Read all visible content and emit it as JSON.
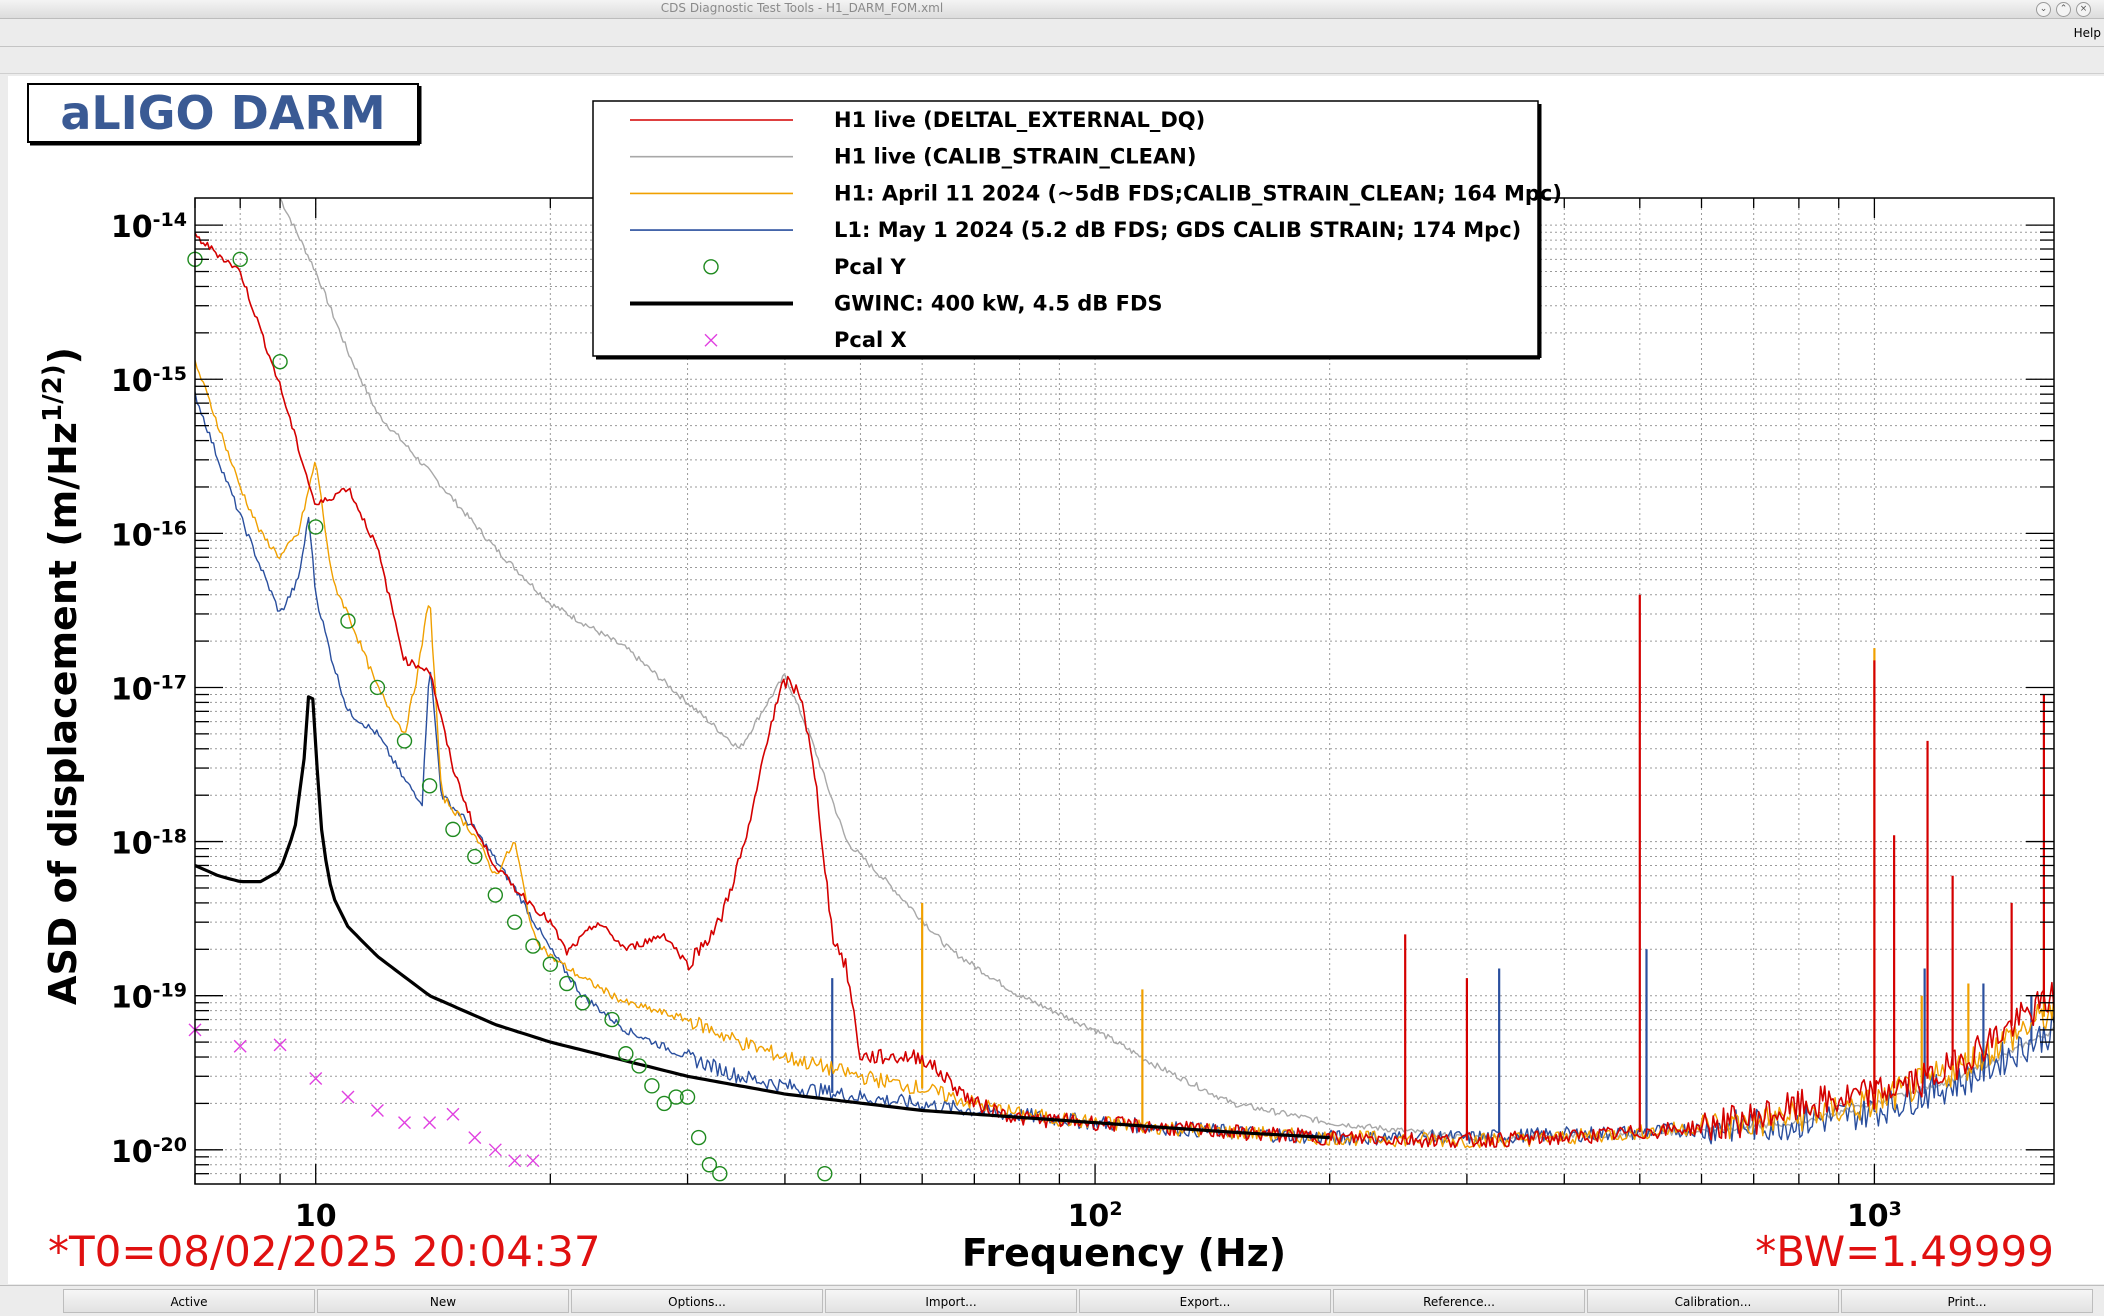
{
  "window": {
    "title": "CDS Diagnostic Test Tools - H1_DARM_FOM.xml"
  },
  "menubar": {
    "help": "Help"
  },
  "buttons": [
    "Active",
    "New",
    "Options...",
    "Import...",
    "Export...",
    "Reference...",
    "Calibration...",
    "Print..."
  ],
  "chart_data": {
    "type": "line",
    "title": "aLIGO DARM",
    "xlabel": "Frequency (Hz)",
    "ylabel": "ASD of displacement (m/Hz^1/2)",
    "xscale": "log",
    "yscale": "log",
    "xlim": [
      7,
      1700
    ],
    "ylim": [
      6e-21,
      1.5e-14
    ],
    "grid": true,
    "legend_position": "top",
    "x_tick_labels": [
      "10",
      "10^2",
      "10^3"
    ],
    "y_tick_labels": [
      "10^-20",
      "10^-19",
      "10^-18",
      "10^-17",
      "10^-16",
      "10^-15",
      "10^-14"
    ],
    "t0_label": "*T0=08/02/2025 20:04:37",
    "bw_label": "*BW=1.49999",
    "series": [
      {
        "name": "H1 live (DELTAL_EXTERNAL_DQ)",
        "color": "#d40000",
        "width": 1.6,
        "style": "line",
        "points": [
          [
            7,
            8.5e-15
          ],
          [
            8,
            5e-15
          ],
          [
            9,
            9e-16
          ],
          [
            10,
            1.5e-16
          ],
          [
            11,
            2e-16
          ],
          [
            12,
            8e-17
          ],
          [
            13,
            1.5e-17
          ],
          [
            14,
            1.3e-17
          ],
          [
            15,
            3e-18
          ],
          [
            16,
            1.2e-18
          ],
          [
            17,
            7e-19
          ],
          [
            18,
            5e-19
          ],
          [
            20,
            3e-19
          ],
          [
            21,
            1.9e-19
          ],
          [
            23,
            3e-19
          ],
          [
            25,
            2e-19
          ],
          [
            28,
            2.5e-19
          ],
          [
            30,
            1.6e-19
          ],
          [
            33,
            3e-19
          ],
          [
            36,
            1.2e-18
          ],
          [
            38,
            5e-18
          ],
          [
            40,
            1.1e-17
          ],
          [
            42,
            9e-18
          ],
          [
            44,
            2e-18
          ],
          [
            46,
            2.5e-19
          ],
          [
            48,
            1.5e-19
          ],
          [
            50,
            4e-20
          ],
          [
            60,
            4e-20
          ],
          [
            70,
            2e-20
          ],
          [
            80,
            1.6e-20
          ],
          [
            100,
            1.5e-20
          ],
          [
            120,
            1.4e-20
          ],
          [
            150,
            1.3e-20
          ],
          [
            200,
            1.2e-20
          ],
          [
            300,
            1.15e-20
          ],
          [
            400,
            1.2e-20
          ],
          [
            500,
            1.3e-20
          ],
          [
            600,
            1.4e-20
          ],
          [
            700,
            1.6e-20
          ],
          [
            800,
            1.9e-20
          ],
          [
            1000,
            2.3e-20
          ],
          [
            1200,
            3e-20
          ],
          [
            1400,
            5e-20
          ],
          [
            1600,
            8e-20
          ],
          [
            1700,
            1e-19
          ]
        ],
        "lines": [
          [
            250,
            2.5e-19
          ],
          [
            300,
            1.3e-19
          ],
          [
            500,
            4e-17
          ],
          [
            1000,
            1.5e-17
          ],
          [
            1060,
            1.1e-18
          ],
          [
            1170,
            4.5e-18
          ],
          [
            1260,
            6e-19
          ],
          [
            1500,
            4e-19
          ],
          [
            1650,
            9e-18
          ]
        ]
      },
      {
        "name": "H1 live (CALIB_STRAIN_CLEAN)",
        "color": "#a8a8a8",
        "width": 1.4,
        "style": "line",
        "points": [
          [
            9,
            1.5e-14
          ],
          [
            10,
            5e-15
          ],
          [
            11,
            1.5e-15
          ],
          [
            12,
            6e-16
          ],
          [
            14,
            2.5e-16
          ],
          [
            17,
            8e-17
          ],
          [
            20,
            3.5e-17
          ],
          [
            25,
            1.8e-17
          ],
          [
            30,
            8e-18
          ],
          [
            35,
            4e-18
          ],
          [
            38,
            8e-18
          ],
          [
            40,
            1.2e-17
          ],
          [
            43,
            5e-18
          ],
          [
            48,
            1e-18
          ],
          [
            55,
            5e-19
          ],
          [
            65,
            2e-19
          ],
          [
            80,
            1e-19
          ],
          [
            100,
            6e-20
          ],
          [
            120,
            3.5e-20
          ],
          [
            150,
            2e-20
          ],
          [
            200,
            1.5e-20
          ],
          [
            300,
            1.2e-20
          ],
          [
            500,
            1.25e-20
          ],
          [
            800,
            1.5e-20
          ],
          [
            1000,
            2e-20
          ],
          [
            1300,
            3e-20
          ],
          [
            1700,
            6e-20
          ]
        ]
      },
      {
        "name": "H1: April 11 2024 (~5dB FDS;CALIB_STRAIN_CLEAN; 164 Mpc)",
        "color": "#f0a000",
        "width": 1.4,
        "style": "line",
        "points": [
          [
            7,
            1.3e-15
          ],
          [
            7.5,
            5e-16
          ],
          [
            8,
            2e-16
          ],
          [
            8.5,
            1e-16
          ],
          [
            9,
            7e-17
          ],
          [
            9.5,
            1e-16
          ],
          [
            10,
            3e-16
          ],
          [
            10.5,
            5e-17
          ],
          [
            11,
            3e-17
          ],
          [
            12,
            1e-17
          ],
          [
            13,
            5e-18
          ],
          [
            13.5,
            1.2e-17
          ],
          [
            14,
            4e-17
          ],
          [
            14.5,
            2e-18
          ],
          [
            16,
            1.1e-18
          ],
          [
            17,
            6e-19
          ],
          [
            18,
            1e-18
          ],
          [
            19,
            2.5e-19
          ],
          [
            20,
            1.8e-19
          ],
          [
            22,
            1.3e-19
          ],
          [
            25,
            9e-20
          ],
          [
            30,
            7e-20
          ],
          [
            35,
            5e-20
          ],
          [
            40,
            4e-20
          ],
          [
            50,
            3e-20
          ],
          [
            60,
            2.5e-20
          ],
          [
            70,
            2e-20
          ],
          [
            80,
            1.7e-20
          ],
          [
            100,
            1.5e-20
          ],
          [
            150,
            1.3e-20
          ],
          [
            200,
            1.2e-20
          ],
          [
            300,
            1.15e-20
          ],
          [
            400,
            1.2e-20
          ],
          [
            500,
            1.3e-20
          ],
          [
            700,
            1.5e-20
          ],
          [
            1000,
            2e-20
          ],
          [
            1300,
            3.5e-20
          ],
          [
            1700,
            8e-20
          ]
        ],
        "lines": [
          [
            60,
            4e-19
          ],
          [
            115,
            1.1e-19
          ],
          [
            1000,
            1.8e-17
          ],
          [
            1150,
            1e-19
          ],
          [
            1320,
            1.2e-19
          ],
          [
            1650,
            3e-19
          ]
        ]
      },
      {
        "name": "L1: May 1 2024 (5.2 dB FDS; GDS CALIB STRAIN; 174 Mpc)",
        "color": "#2a4f9e",
        "width": 1.4,
        "style": "line",
        "points": [
          [
            7,
            8e-16
          ],
          [
            7.5,
            3e-16
          ],
          [
            8,
            1.3e-16
          ],
          [
            8.5,
            6e-17
          ],
          [
            9,
            3e-17
          ],
          [
            9.5,
            5e-17
          ],
          [
            9.8,
            1.3e-16
          ],
          [
            10,
            4e-17
          ],
          [
            10.5,
            1.5e-17
          ],
          [
            11,
            7e-18
          ],
          [
            12,
            5e-18
          ],
          [
            13,
            2.5e-18
          ],
          [
            13.7,
            1.8e-18
          ],
          [
            14,
            1.5e-17
          ],
          [
            14.5,
            2e-18
          ],
          [
            16,
            1.2e-18
          ],
          [
            18,
            5e-19
          ],
          [
            20,
            2e-19
          ],
          [
            22,
            1e-19
          ],
          [
            25,
            6e-20
          ],
          [
            30,
            4e-20
          ],
          [
            35,
            3e-20
          ],
          [
            40,
            2.6e-20
          ],
          [
            50,
            2.2e-20
          ],
          [
            70,
            1.8e-20
          ],
          [
            100,
            1.5e-20
          ],
          [
            150,
            1.3e-20
          ],
          [
            200,
            1.2e-20
          ],
          [
            300,
            1.2e-20
          ],
          [
            500,
            1.3e-20
          ],
          [
            800,
            1.5e-20
          ],
          [
            1000,
            1.8e-20
          ],
          [
            1300,
            2.8e-20
          ],
          [
            1700,
            6e-20
          ]
        ],
        "lines": [
          [
            46,
            1.3e-19
          ],
          [
            330,
            1.5e-19
          ],
          [
            510,
            2e-19
          ],
          [
            1160,
            1.5e-19
          ],
          [
            1380,
            1.2e-19
          ],
          [
            1590,
            1e-19
          ]
        ]
      },
      {
        "name": "GWINC: 400 kW, 4.5 dB FDS",
        "color": "#000000",
        "width": 3.2,
        "style": "line",
        "points": [
          [
            7,
            7e-19
          ],
          [
            7.5,
            6e-19
          ],
          [
            8,
            5.5e-19
          ],
          [
            8.5,
            5.5e-19
          ],
          [
            9,
            6.5e-19
          ],
          [
            9.4,
            1.2e-18
          ],
          [
            9.7,
            4e-18
          ],
          [
            9.85,
            1.5e-17
          ],
          [
            10,
            4e-18
          ],
          [
            10.2,
            1e-18
          ],
          [
            10.5,
            4.5e-19
          ],
          [
            11,
            2.8e-19
          ],
          [
            12,
            1.8e-19
          ],
          [
            14,
            1e-19
          ],
          [
            17,
            6.5e-20
          ],
          [
            20,
            5e-20
          ],
          [
            30,
            3e-20
          ],
          [
            40,
            2.3e-20
          ],
          [
            60,
            1.8e-20
          ],
          [
            100,
            1.5e-20
          ],
          [
            150,
            1.3e-20
          ],
          [
            200,
            1.2e-20
          ]
        ]
      },
      {
        "name": "Pcal Y",
        "color": "#1f8a1f",
        "style": "marker",
        "marker": "circle",
        "points": [
          [
            7,
            6e-15
          ],
          [
            8,
            6e-15
          ],
          [
            9,
            1.3e-15
          ],
          [
            10,
            1.1e-16
          ],
          [
            11,
            2.7e-17
          ],
          [
            12,
            1e-17
          ],
          [
            13,
            4.5e-18
          ],
          [
            14,
            2.3e-18
          ],
          [
            15,
            1.2e-18
          ],
          [
            16,
            8e-19
          ],
          [
            17,
            4.5e-19
          ],
          [
            18,
            3e-19
          ],
          [
            19,
            2.1e-19
          ],
          [
            20,
            1.6e-19
          ],
          [
            21,
            1.2e-19
          ],
          [
            22,
            9e-20
          ],
          [
            24,
            7e-20
          ],
          [
            25,
            4.2e-20
          ],
          [
            26,
            3.5e-20
          ],
          [
            27,
            2.6e-20
          ],
          [
            28,
            2e-20
          ],
          [
            29,
            2.2e-20
          ],
          [
            30,
            2.2e-20
          ],
          [
            31,
            1.2e-20
          ],
          [
            32,
            8e-21
          ],
          [
            33,
            7e-21
          ],
          [
            45,
            7e-21
          ]
        ]
      },
      {
        "name": "Pcal X",
        "color": "#e040e0",
        "style": "marker",
        "marker": "x",
        "points": [
          [
            7,
            6e-20
          ],
          [
            8,
            4.7e-20
          ],
          [
            9,
            4.8e-20
          ],
          [
            10,
            2.9e-20
          ],
          [
            11,
            2.2e-20
          ],
          [
            12,
            1.8e-20
          ],
          [
            13,
            1.5e-20
          ],
          [
            14,
            1.5e-20
          ],
          [
            15,
            1.7e-20
          ],
          [
            16,
            1.2e-20
          ],
          [
            17,
            1e-20
          ],
          [
            18,
            8.5e-21
          ],
          [
            19,
            8.5e-21
          ]
        ]
      }
    ]
  }
}
